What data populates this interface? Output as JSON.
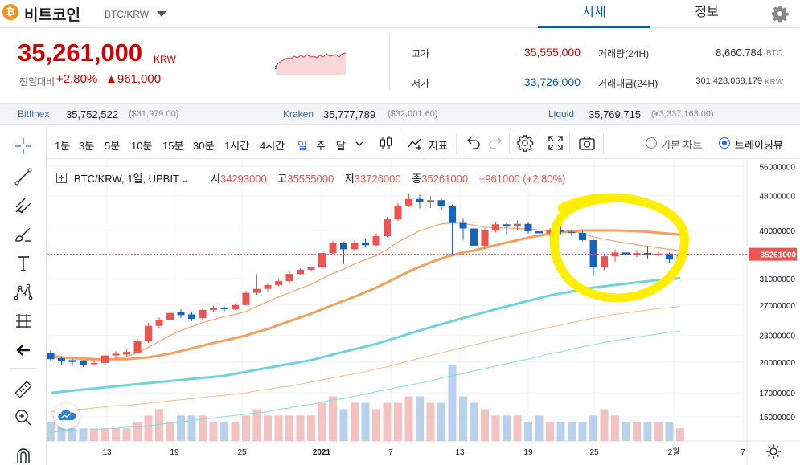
{
  "header": {
    "coin_logo": "₿",
    "coin_name": "비트코인",
    "coin_pair": "BTC/KRW",
    "tabs": [
      {
        "label": "시세",
        "active": true
      },
      {
        "label": "정보",
        "active": false
      }
    ],
    "settings_icon": "gear-icon"
  },
  "summary": {
    "price": "35,261,000",
    "price_unit": "KRW",
    "change_label": "전일대비",
    "change_pct": "+2.80%",
    "change_amount": "▲961,000",
    "high_label": "고가",
    "high_value": "35,555,000",
    "low_label": "저가",
    "low_value": "33,726,000",
    "volume_label": "거래량(24H)",
    "volume_value": "8,660.784",
    "volume_unit": "BTC",
    "turnover_label": "거래대금(24H)",
    "turnover_value": "301,428,068,179",
    "turnover_unit": "KRW",
    "up_color": "#d60000",
    "down_color": "#0f5bb0"
  },
  "exchanges": [
    {
      "name": "Bitfinex",
      "price": "35,752,522",
      "sub": "($31,979.00)"
    },
    {
      "name": "Kraken",
      "price": "35,777,789",
      "sub": "($32,001.60)"
    },
    {
      "name": "Liquid",
      "price": "35,769,715",
      "sub": "(¥3,337,163.00)"
    }
  ],
  "toolbar": {
    "intervals": [
      "1분",
      "3분",
      "5분",
      "10분",
      "15분",
      "30분",
      "1시간",
      "4시간",
      "일",
      "주",
      "달"
    ],
    "selected_interval": "일",
    "indicators_label": "지표",
    "basic_chart_label": "기본 차트",
    "tradingview_label": "트레이딩뷰",
    "chart_mode": "트레이딩뷰"
  },
  "chart": {
    "legend_pair": "BTC/KRW, 1일, UPBIT",
    "open_label": "시",
    "open_value": "34293000",
    "high_label": "고",
    "high_value": "35555000",
    "low_label": "저",
    "low_value": "33726000",
    "close_label": "종",
    "close_value": "35261000",
    "change_text": "+961000 (+2.80%)",
    "last_price_tag": "35261000",
    "y_ticks": [
      "56000000",
      "48000000",
      "40000000",
      "35261000",
      "31000000",
      "27000000",
      "23000000",
      "20000000",
      "17000000",
      "15000000"
    ],
    "x_ticks": [
      "13",
      "19",
      "25",
      "2021",
      "7",
      "13",
      "19",
      "25",
      "2월",
      "7"
    ]
  },
  "chart_data": {
    "type": "candlestick",
    "candles": [
      [
        21.0,
        20.3,
        21.3,
        20.1
      ],
      [
        20.4,
        20.1,
        20.6,
        19.7
      ],
      [
        20.2,
        20.0,
        20.4,
        19.6
      ],
      [
        20.1,
        19.7,
        20.2,
        19.5
      ],
      [
        19.8,
        19.9,
        20.3,
        19.6
      ],
      [
        19.9,
        20.7,
        20.9,
        19.8
      ],
      [
        20.7,
        20.9,
        21.2,
        20.4
      ],
      [
        20.8,
        21.1,
        21.4,
        20.6
      ],
      [
        21.0,
        22.3,
        22.6,
        20.9
      ],
      [
        22.3,
        24.2,
        24.6,
        22.1
      ],
      [
        24.2,
        25.0,
        25.3,
        23.9
      ],
      [
        25.0,
        25.9,
        26.3,
        24.8
      ],
      [
        26.0,
        25.6,
        26.4,
        25.2
      ],
      [
        25.7,
        25.1,
        26.1,
        24.8
      ],
      [
        25.2,
        26.3,
        26.6,
        25.0
      ],
      [
        26.3,
        26.6,
        26.9,
        26.1
      ],
      [
        26.6,
        26.4,
        26.8,
        26.1
      ],
      [
        26.4,
        27.0,
        27.2,
        26.3
      ],
      [
        27.0,
        28.8,
        29.1,
        26.9
      ],
      [
        28.8,
        29.4,
        31.8,
        28.5
      ],
      [
        29.4,
        30.0,
        30.2,
        29.0
      ],
      [
        30.0,
        30.6,
        30.9,
        29.8
      ],
      [
        30.6,
        31.8,
        32.2,
        30.4
      ],
      [
        31.8,
        32.5,
        32.8,
        31.6
      ],
      [
        32.5,
        32.9,
        33.0,
        32.2
      ],
      [
        32.9,
        35.5,
        36.0,
        32.8
      ],
      [
        35.5,
        37.4,
        37.9,
        35.3
      ],
      [
        37.4,
        36.2,
        37.7,
        33.5
      ],
      [
        36.2,
        37.5,
        38.0,
        35.8
      ],
      [
        37.5,
        37.0,
        38.4,
        36.6
      ],
      [
        37.0,
        38.8,
        39.4,
        36.8
      ],
      [
        38.8,
        42.4,
        43.0,
        38.6
      ],
      [
        42.4,
        45.6,
        46.2,
        42.0
      ],
      [
        45.6,
        47.2,
        48.6,
        45.2
      ],
      [
        47.2,
        46.4,
        48.3,
        44.9
      ],
      [
        46.4,
        46.9,
        47.9,
        45.0
      ],
      [
        46.9,
        45.4,
        47.2,
        44.6
      ],
      [
        45.4,
        41.6,
        45.9,
        35.0
      ],
      [
        41.6,
        40.4,
        42.5,
        38.0
      ],
      [
        40.4,
        36.9,
        41.3,
        35.8
      ],
      [
        36.9,
        40.0,
        40.5,
        36.2
      ],
      [
        40.0,
        41.3,
        41.7,
        39.6
      ],
      [
        41.3,
        40.8,
        41.6,
        39.2
      ],
      [
        40.8,
        41.4,
        42.2,
        40.1
      ],
      [
        41.4,
        39.8,
        41.7,
        39.3
      ],
      [
        39.8,
        39.4,
        40.4,
        38.9
      ],
      [
        39.4,
        40.1,
        40.5,
        38.8
      ],
      [
        40.1,
        39.7,
        40.8,
        39.2
      ],
      [
        39.7,
        39.5,
        40.1,
        38.8
      ],
      [
        39.5,
        38.0,
        39.8,
        37.9
      ],
      [
        38.0,
        32.9,
        38.3,
        31.5
      ],
      [
        32.9,
        34.9,
        35.4,
        32.4
      ],
      [
        34.9,
        35.6,
        36.2,
        33.9
      ],
      [
        35.6,
        35.2,
        36.0,
        34.6
      ],
      [
        35.2,
        35.5,
        36.1,
        34.7
      ],
      [
        35.5,
        35.2,
        36.8,
        34.5
      ],
      [
        35.2,
        35.4,
        35.9,
        34.9
      ],
      [
        35.4,
        34.3,
        35.6,
        33.7
      ],
      [
        34.3,
        35.3,
        35.6,
        33.7
      ]
    ],
    "volume": [
      3,
      3,
      2,
      2,
      2,
      2,
      2,
      2,
      3,
      4,
      5,
      3,
      4,
      4,
      4,
      3,
      3,
      3,
      4,
      5,
      4,
      4,
      4,
      4,
      4,
      6,
      7,
      5,
      6,
      6,
      5,
      6,
      6,
      7,
      7,
      6,
      6,
      12,
      7,
      6,
      5,
      4,
      4,
      4,
      3,
      4,
      3,
      3,
      3,
      3,
      4,
      5,
      4,
      3,
      3,
      3,
      3,
      3,
      2
    ],
    "ma_fast": [
      20.8,
      20.6,
      20.4,
      20.2,
      20.1,
      20.2,
      20.4,
      20.6,
      21.0,
      21.6,
      22.3,
      23.0,
      23.6,
      24.1,
      24.6,
      25.0,
      25.4,
      25.7,
      26.1,
      26.8,
      27.5,
      28.2,
      28.8,
      29.5,
      30.1,
      31.0,
      31.9,
      32.6,
      33.5,
      34.3,
      35.0,
      36.2,
      37.6,
      38.8,
      39.9,
      40.7,
      41.4,
      41.6,
      41.5,
      41.1,
      40.7,
      40.5,
      40.5,
      40.4,
      40.3,
      40.1,
      39.9,
      39.8,
      39.7,
      39.4,
      38.7,
      38.2,
      37.8,
      37.4,
      37.1,
      36.8,
      36.5,
      36.2,
      36.0
    ],
    "ma_mid": [
      20.5,
      20.5,
      20.4,
      20.4,
      20.3,
      20.3,
      20.3,
      20.3,
      20.4,
      20.5,
      20.7,
      20.9,
      21.2,
      21.5,
      21.8,
      22.1,
      22.4,
      22.7,
      23.0,
      23.4,
      23.8,
      24.3,
      24.8,
      25.3,
      25.8,
      26.4,
      27.0,
      27.6,
      28.2,
      28.9,
      29.6,
      30.4,
      31.3,
      32.2,
      33.0,
      33.8,
      34.5,
      35.1,
      35.6,
      36.0,
      36.5,
      37.0,
      37.5,
      38.0,
      38.5,
      38.9,
      39.3,
      39.6,
      39.8,
      40.0,
      40.0,
      40.0,
      40.0,
      39.9,
      39.8,
      39.7,
      39.5,
      39.3,
      39.1
    ],
    "ma_slow": [
      17.0,
      17.1,
      17.2,
      17.3,
      17.4,
      17.5,
      17.6,
      17.7,
      17.8,
      17.9,
      18.0,
      18.1,
      18.2,
      18.3,
      18.4,
      18.5,
      18.6,
      18.8,
      19.0,
      19.2,
      19.4,
      19.6,
      19.8,
      20.0,
      20.2,
      20.5,
      20.8,
      21.1,
      21.4,
      21.7,
      22.0,
      22.4,
      22.8,
      23.2,
      23.6,
      24.0,
      24.4,
      24.8,
      25.2,
      25.6,
      26.0,
      26.4,
      26.8,
      27.2,
      27.6,
      28.0,
      28.4,
      28.7,
      29.0,
      29.3,
      29.6,
      29.8,
      30.0,
      30.2,
      30.4,
      30.6,
      30.8,
      30.9,
      31.1
    ],
    "ma_orange_thin": [
      15.4,
      15.5,
      15.6,
      15.6,
      15.7,
      15.8,
      15.9,
      15.9,
      16.0,
      16.1,
      16.2,
      16.3,
      16.4,
      16.5,
      16.6,
      16.7,
      16.8,
      16.9,
      17.0,
      17.2,
      17.3,
      17.5,
      17.6,
      17.8,
      18.0,
      18.2,
      18.4,
      18.6,
      18.8,
      19.0,
      19.3,
      19.5,
      19.8,
      20.1,
      20.4,
      20.7,
      21.0,
      21.3,
      21.6,
      21.9,
      22.2,
      22.5,
      22.8,
      23.1,
      23.4,
      23.7,
      24.0,
      24.3,
      24.6,
      24.9,
      25.2,
      25.4,
      25.7,
      25.9,
      26.1,
      26.3,
      26.5,
      26.6,
      26.8
    ],
    "ma_cyan_thin": [
      13.8,
      13.9,
      13.9,
      14.0,
      14.0,
      14.1,
      14.1,
      14.2,
      14.2,
      14.3,
      14.4,
      14.5,
      14.6,
      14.7,
      14.8,
      14.9,
      15.0,
      15.1,
      15.2,
      15.3,
      15.4,
      15.6,
      15.7,
      15.9,
      16.0,
      16.2,
      16.4,
      16.5,
      16.7,
      16.9,
      17.1,
      17.3,
      17.5,
      17.7,
      17.9,
      18.1,
      18.4,
      18.6,
      18.8,
      19.1,
      19.3,
      19.6,
      19.8,
      20.1,
      20.3,
      20.6,
      20.9,
      21.1,
      21.4,
      21.7,
      21.9,
      22.2,
      22.4,
      22.6,
      22.8,
      23.0,
      23.2,
      23.4,
      23.5
    ],
    "highlight": "yellow circle around latest candles",
    "up_color": "#ef5350",
    "down_color": "#1565c0"
  }
}
